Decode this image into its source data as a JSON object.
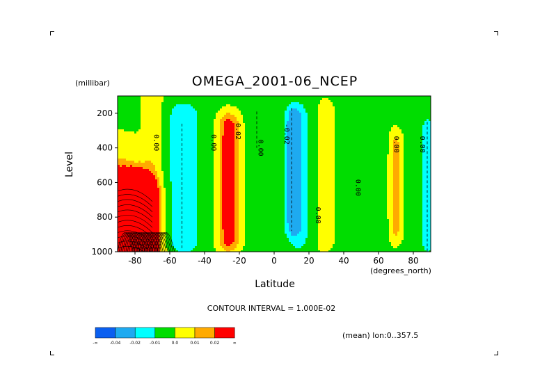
{
  "chart_data": {
    "type": "contour",
    "title": "OMEGA_2001-06_NCEP",
    "y_unit": "(millibar)",
    "ylabel": "Level",
    "xlabel": "Latitude",
    "x_unit": "(degrees_north)",
    "xlim": [
      -90,
      90
    ],
    "ylim": [
      1000,
      100
    ],
    "xticks": [
      -80,
      -60,
      -40,
      -20,
      0,
      20,
      40,
      60,
      80
    ],
    "yticks": [
      200,
      400,
      600,
      800,
      1000
    ],
    "contour_interval_text": "CONTOUR INTERVAL = 1.000E-02",
    "mean_text": "(mean) lon:0..357.5",
    "colorbar": {
      "colors": [
        "#0a5ff0",
        "#1eaaf0",
        "#00ffff",
        "#00dd00",
        "#ffff00",
        "#ffaa00",
        "#ff0000"
      ],
      "labels": [
        "-∞",
        "-0.04",
        "-0.02",
        "-0.01",
        "0.0",
        "0.01",
        "0.02",
        "∞"
      ]
    },
    "contour_labels": [
      {
        "text": "0.00",
        "lat": -69,
        "lev": 370
      },
      {
        "text": "0.00",
        "lat": -36,
        "lev": 370
      },
      {
        "text": "0.02",
        "lat": -22,
        "lev": 305
      },
      {
        "text": "0.00",
        "lat": -9,
        "lev": 400
      },
      {
        "text": "-0.02",
        "lat": 6,
        "lev": 320
      },
      {
        "text": "0.00",
        "lat": 24,
        "lev": 790
      },
      {
        "text": "0.00",
        "lat": 47,
        "lev": 630
      },
      {
        "text": "0.00",
        "lat": 69,
        "lev": 380
      },
      {
        "text": "0.00",
        "lat": 84,
        "lev": 380
      }
    ]
  }
}
